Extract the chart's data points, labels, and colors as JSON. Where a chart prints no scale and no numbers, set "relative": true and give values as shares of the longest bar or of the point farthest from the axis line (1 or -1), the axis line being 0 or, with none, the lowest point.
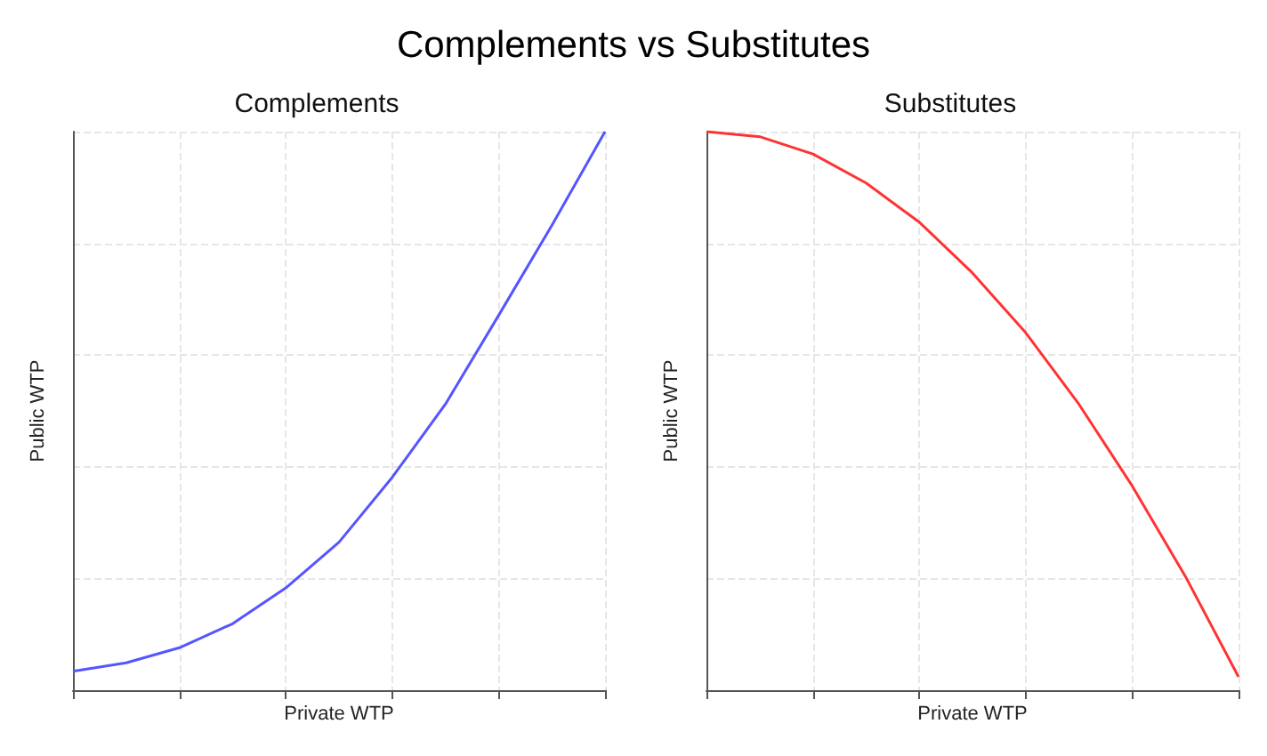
{
  "chart_data": [
    {
      "type": "line",
      "title": "Complements vs Substitutes",
      "subtitle": "Complements",
      "xlabel": "Private WTP",
      "ylabel": "Public WTP",
      "relative": true,
      "grid": true,
      "tick_labels": false,
      "categories": [
        null,
        null,
        null,
        null,
        null,
        null,
        null,
        null,
        null,
        null,
        null
      ],
      "series": [
        {
          "color": "#5555ff",
          "values": [
            0.034,
            0.049,
            0.076,
            0.119,
            0.183,
            0.265,
            0.381,
            0.512,
            0.671,
            0.832,
            1
          ]
        }
      ]
    },
    {
      "type": "line",
      "subtitle": "Substitutes",
      "xlabel": "Private WTP",
      "ylabel": "Public WTP",
      "relative": true,
      "grid": true,
      "tick_labels": false,
      "categories": [
        null,
        null,
        null,
        null,
        null,
        null,
        null,
        null,
        null,
        null,
        null
      ],
      "series": [
        {
          "color": "#ff3333",
          "values": [
            1,
            0.991,
            0.96,
            0.908,
            0.838,
            0.747,
            0.64,
            0.512,
            0.366,
            0.204,
            0.024
          ]
        }
      ]
    }
  ]
}
